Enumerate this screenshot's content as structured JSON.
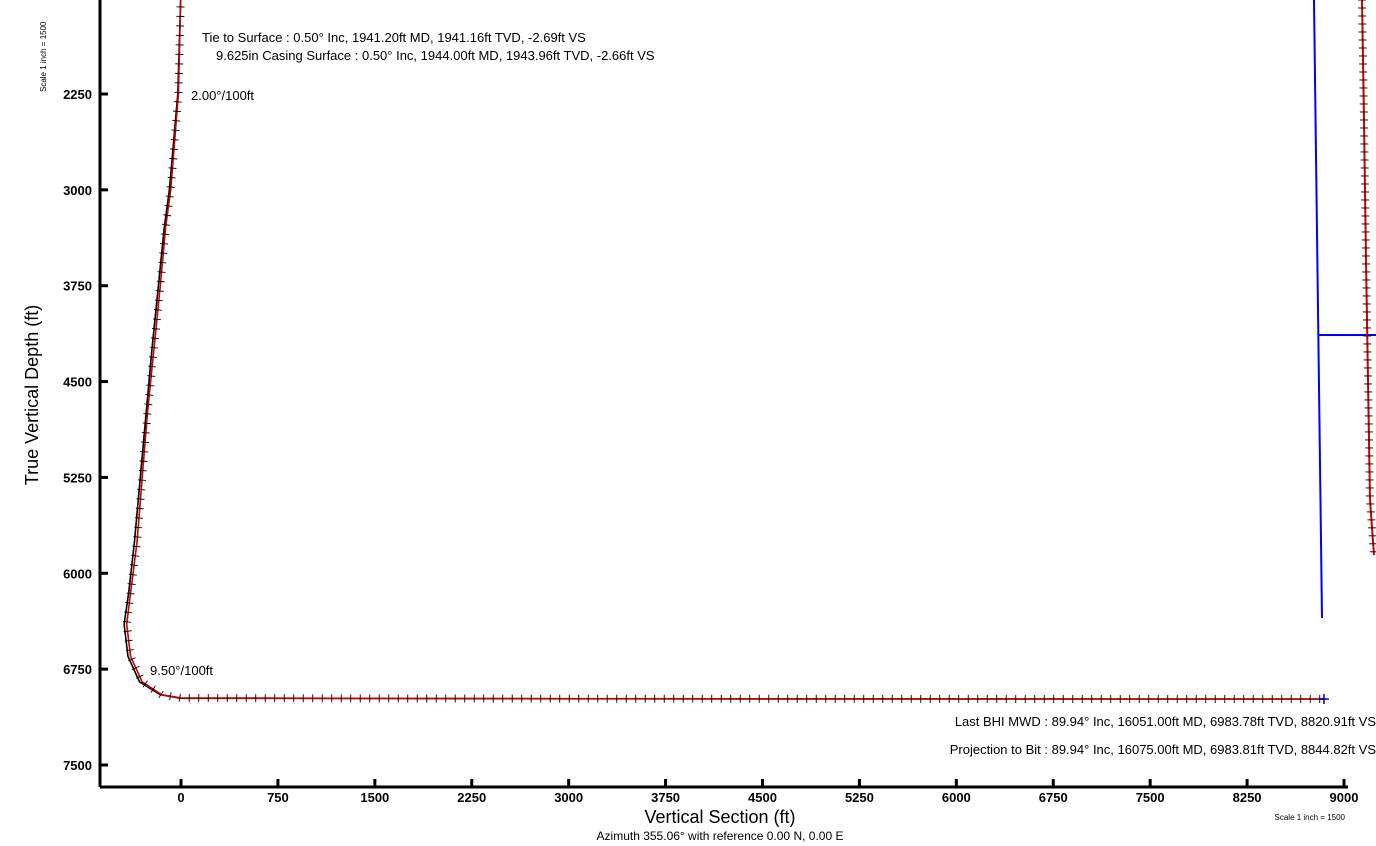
{
  "chart_data": {
    "type": "line",
    "xlabel": "Vertical Section (ft)",
    "ylabel": "True Vertical Depth (ft)",
    "subtitle": "Azimuth 355.06° with reference 0.00 N, 0.00 E",
    "scale_note_left": "Scale 1 inch = 1500",
    "scale_note_right": "Scale 1 inch = 1500",
    "x_ticks": [
      "0",
      "750",
      "1500",
      "2250",
      "3000",
      "3750",
      "4500",
      "5250",
      "6000",
      "6750",
      "7500",
      "8250",
      "9000"
    ],
    "y_ticks": [
      "2250",
      "3000",
      "3750",
      "4500",
      "5250",
      "6000",
      "6750",
      "7500"
    ],
    "xlim": [
      -650,
      9050
    ],
    "ylim": [
      1420,
      7550
    ],
    "annotations": [
      {
        "text": "Tie to Surface : 0.50° Inc, 1941.20ft MD, 1941.16ft TVD, -2.69ft VS"
      },
      {
        "text": "9.625in Casing Surface : 0.50° Inc, 1944.00ft MD, 1943.96ft TVD, -2.66ft VS"
      },
      {
        "text": "2.00°/100ft"
      },
      {
        "text": "9.50°/100ft"
      },
      {
        "text": "Last BHI MWD : 89.94° Inc, 16051.00ft MD, 6983.78ft TVD, 8820.91ft VS"
      },
      {
        "text": "Projection to Bit : 89.94° Inc, 16075.00ft MD, 6983.81ft TVD, 8844.82ft VS"
      }
    ],
    "series": [
      {
        "color": "#cc0000",
        "x": [
          0,
          -20,
          -80,
          -120,
          -160,
          -210,
          -260,
          -300,
          -340,
          -390,
          -420,
          -390,
          -300,
          -150,
          0,
          1500,
          3000,
          4500,
          6000,
          7500,
          8820.91,
          8844.82
        ],
        "y": [
          1420,
          2250,
          3000,
          3300,
          3750,
          4250,
          4750,
          5250,
          5750,
          6150,
          6400,
          6650,
          6850,
          6950,
          6975,
          6979,
          6981,
          6982,
          6983,
          6983.5,
          6983.78,
          6983.81
        ]
      },
      {
        "color": "#000000",
        "x": [
          0,
          -25,
          -90,
          -130,
          -175,
          -225,
          -270,
          -315,
          -360,
          -405,
          -440,
          -410,
          -320,
          -160,
          0,
          1500,
          3000,
          4500,
          6000,
          7500,
          8844.82
        ],
        "y": [
          1420,
          2250,
          3000,
          3300,
          3750,
          4250,
          4750,
          5250,
          5750,
          6150,
          6400,
          6650,
          6850,
          6950,
          6978,
          6980,
          6982,
          6983,
          6983.5,
          6983.7,
          6983.81
        ]
      }
    ]
  },
  "colors": {
    "plan": "#cc0000",
    "actual": "#000000",
    "inset_lines": "#0000ff"
  }
}
